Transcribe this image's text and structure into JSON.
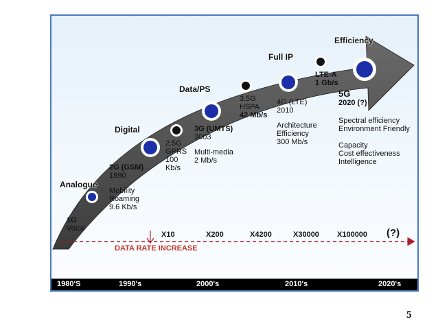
{
  "eras": {
    "analogue": "Analogue",
    "digital": "Digital",
    "data_ps": "Data/PS",
    "full_ip": "Full IP",
    "efficiency": "Efficiency"
  },
  "generations": {
    "g1": {
      "name": "1G",
      "lines": [
        "Voice"
      ]
    },
    "g2": {
      "name": "2G (GSM)",
      "year": "1990",
      "lines": [
        "Mobility",
        "Roaming",
        "9.6 Kb/s"
      ]
    },
    "g25": {
      "lines": [
        "2.5G",
        "GPRS",
        "100",
        "Kb/s"
      ]
    },
    "g3": {
      "name": "3G (UMTS)",
      "year": "2003",
      "lines": [
        "Multi-media",
        "2 Mb/s"
      ]
    },
    "g35": {
      "lines": [
        "3.5G",
        "HSPA",
        "42 Mb/s"
      ]
    },
    "g4": {
      "name": "4G (LTE)",
      "year": "2010",
      "lines": [
        "Architecture",
        "Efficiency",
        "300 Mb/s"
      ]
    },
    "lte_a": {
      "lines": [
        "LTE-A",
        "1 Gb/s"
      ]
    },
    "g5": {
      "name": "5G",
      "year": "2020 (?)",
      "lines": [
        "Spectral efficiency",
        "Environment Friendly",
        "",
        "Capacity",
        "Cost effectiveness",
        "Intelligence"
      ]
    }
  },
  "data_rate": {
    "label": "DATA RATE INCREASE",
    "multipliers": [
      "X10",
      "X200",
      "X4200",
      "X30000",
      "X100000",
      "(?)"
    ]
  },
  "timeline": [
    "1980'S",
    "1990's",
    "2000's",
    "2010's",
    "2020's"
  ],
  "slide_number": "5",
  "colors": {
    "arrow": "#4b4b4b",
    "big_dot": "#1c2fa8",
    "small_dot": "#111111",
    "timeline_bg": "#000000",
    "data_rate_label": "#c0392b",
    "slide_border": "#4a78c2"
  }
}
